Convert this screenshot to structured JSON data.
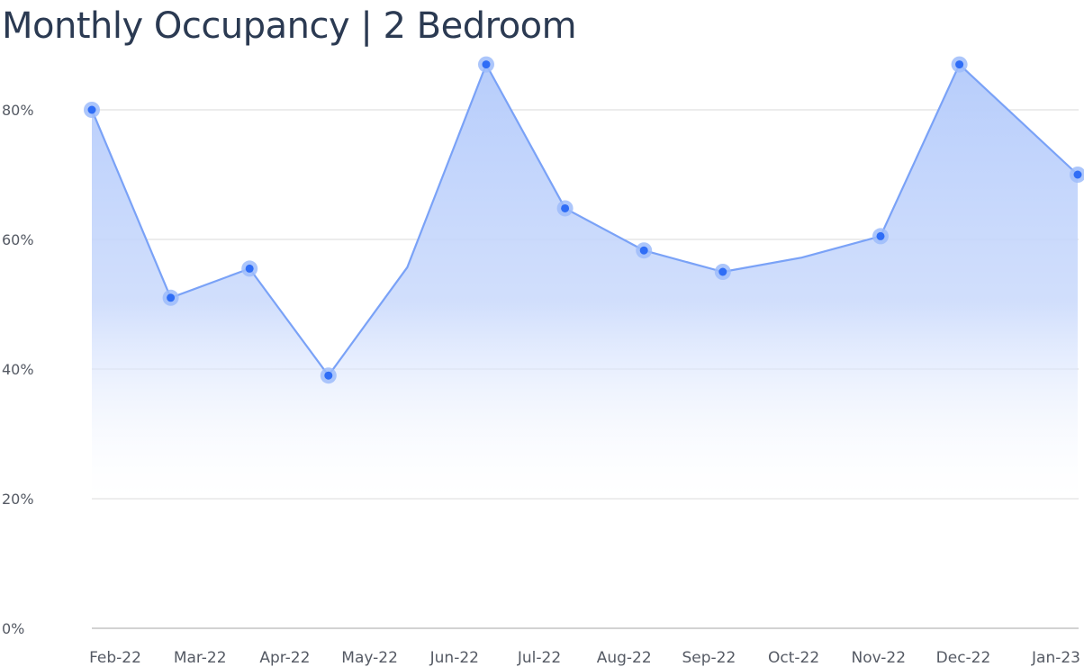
{
  "chart_data": {
    "type": "area",
    "title": "Monthly Occupancy | 2 Bedroom",
    "xlabel": "",
    "ylabel": "",
    "categories": [
      "Feb-22",
      "Mar-22",
      "Apr-22",
      "May-22",
      "Jun-22",
      "Jul-22",
      "Aug-22",
      "Sep-22",
      "Oct-22",
      "Nov-22",
      "Dec-22",
      "Jan-23"
    ],
    "x_positions": [
      0,
      1,
      2,
      3,
      4,
      5,
      6,
      7,
      8,
      9,
      10,
      11,
      12
    ],
    "points": [
      {
        "x": 0,
        "y": 80,
        "marker": true
      },
      {
        "x": 1,
        "y": 51,
        "marker": true
      },
      {
        "x": 2,
        "y": 55.5,
        "marker": true
      },
      {
        "x": 3,
        "y": 39,
        "marker": true
      },
      {
        "x": 4,
        "y": 55.7,
        "marker": false
      },
      {
        "x": 5,
        "y": 87,
        "marker": true
      },
      {
        "x": 6,
        "y": 64.8,
        "marker": true
      },
      {
        "x": 7,
        "y": 58.3,
        "marker": true
      },
      {
        "x": 8,
        "y": 55,
        "marker": true
      },
      {
        "x": 9,
        "y": 57.2,
        "marker": false
      },
      {
        "x": 10,
        "y": 60.5,
        "marker": true
      },
      {
        "x": 11,
        "y": 87,
        "marker": true
      },
      {
        "x": 12.5,
        "y": 70,
        "marker": true
      }
    ],
    "ylim": [
      0,
      100
    ],
    "yticks": [
      0,
      20,
      40,
      60,
      80
    ],
    "ytick_labels": [
      "0%",
      "20%",
      "40%",
      "60%",
      "80%"
    ],
    "grid": true,
    "legend": "none",
    "colors": {
      "line": "#7aa2f7",
      "fill": "#b7cdfb",
      "marker_core": "#2f6df6",
      "marker_halo": "#9dbcfa",
      "grid": "#d9d9d9",
      "axis": "#c4c4c4"
    }
  }
}
